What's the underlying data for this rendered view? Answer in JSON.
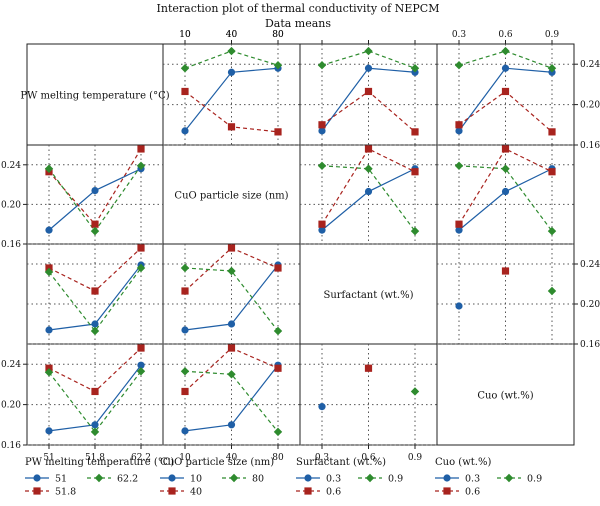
{
  "title": "Interaction plot of thermal conductivity of NEPCM",
  "subtitle": "Data means",
  "colors": {
    "blue": "#1f5fa6",
    "red": "#a8231e",
    "green": "#2e8b2e",
    "grid": "#555555"
  },
  "chart_data": {
    "type": "line",
    "factors": [
      {
        "key": "pw",
        "label": "PW melting temperature (°C)",
        "levels": [
          "51",
          "51.8",
          "62.2"
        ]
      },
      {
        "key": "cuo_size",
        "label": "CuO particle size (nm)",
        "levels": [
          "10",
          "40",
          "80"
        ]
      },
      {
        "key": "surf",
        "label": "Surfactant (wt.%)",
        "levels": [
          "0.3",
          "0.6",
          "0.9"
        ]
      },
      {
        "key": "cuo",
        "label": "Cuo (wt.%)",
        "levels": [
          "0.3",
          "0.6",
          "0.9"
        ]
      }
    ],
    "y_ticks": [
      "0.16",
      "0.20",
      "0.24"
    ],
    "ylim": [
      0.16,
      0.26
    ],
    "series_colors": [
      "blue",
      "red",
      "green"
    ],
    "series_markers": [
      "circle",
      "square",
      "diamond"
    ],
    "panels": [
      {
        "row": 0,
        "col": 1,
        "trace_factor": "pw",
        "series": [
          {
            "name": "51",
            "values": [
              0.174,
              0.232,
              0.236
            ]
          },
          {
            "name": "51.8",
            "values": [
              0.213,
              0.178,
              0.173
            ]
          },
          {
            "name": "62.2",
            "values": [
              0.236,
              0.253,
              0.239
            ]
          }
        ]
      },
      {
        "row": 0,
        "col": 2,
        "trace_factor": "pw",
        "series": [
          {
            "name": "51",
            "values": [
              0.174,
              0.236,
              0.232
            ]
          },
          {
            "name": "51.8",
            "values": [
              0.18,
              0.213,
              0.173
            ]
          },
          {
            "name": "62.2",
            "values": [
              0.239,
              0.253,
              0.236
            ]
          }
        ]
      },
      {
        "row": 0,
        "col": 3,
        "trace_factor": "pw",
        "series": [
          {
            "name": "51",
            "values": [
              0.174,
              0.236,
              0.232
            ]
          },
          {
            "name": "51.8",
            "values": [
              0.18,
              0.213,
              0.173
            ]
          },
          {
            "name": "62.2",
            "values": [
              0.239,
              0.253,
              0.236
            ]
          }
        ]
      },
      {
        "row": 1,
        "col": 0,
        "trace_factor": "cuo_size",
        "series": [
          {
            "name": "10",
            "values": [
              0.174,
              0.214,
              0.236
            ]
          },
          {
            "name": "40",
            "values": [
              0.233,
              0.18,
              0.256
            ]
          },
          {
            "name": "80",
            "values": [
              0.236,
              0.173,
              0.239
            ]
          }
        ]
      },
      {
        "row": 1,
        "col": 2,
        "trace_factor": "cuo_size",
        "series": [
          {
            "name": "10",
            "values": [
              0.174,
              0.213,
              0.236
            ]
          },
          {
            "name": "40",
            "values": [
              0.18,
              0.256,
              0.233
            ]
          },
          {
            "name": "80",
            "values": [
              0.239,
              0.236,
              0.173
            ]
          }
        ]
      },
      {
        "row": 1,
        "col": 3,
        "trace_factor": "cuo_size",
        "series": [
          {
            "name": "10",
            "values": [
              0.174,
              0.213,
              0.236
            ]
          },
          {
            "name": "40",
            "values": [
              0.18,
              0.256,
              0.233
            ]
          },
          {
            "name": "80",
            "values": [
              0.239,
              0.236,
              0.173
            ]
          }
        ]
      },
      {
        "row": 2,
        "col": 0,
        "trace_factor": "surf",
        "series": [
          {
            "name": "0.3",
            "values": [
              0.174,
              0.18,
              0.239
            ]
          },
          {
            "name": "0.6",
            "values": [
              0.236,
              0.213,
              0.256
            ]
          },
          {
            "name": "0.9",
            "values": [
              0.232,
              0.173,
              0.236
            ]
          }
        ]
      },
      {
        "row": 2,
        "col": 1,
        "trace_factor": "surf",
        "series": [
          {
            "name": "0.3",
            "values": [
              0.174,
              0.18,
              0.239
            ]
          },
          {
            "name": "0.6",
            "values": [
              0.213,
              0.256,
              0.236
            ]
          },
          {
            "name": "0.9",
            "values": [
              0.236,
              0.233,
              0.173
            ]
          }
        ]
      },
      {
        "row": 2,
        "col": 3,
        "trace_factor": "surf",
        "series": [
          {
            "name": "0.3",
            "values": [
              0.198,
              null,
              null
            ]
          },
          {
            "name": "0.6",
            "values": [
              null,
              0.233,
              null
            ]
          },
          {
            "name": "0.9",
            "values": [
              null,
              null,
              0.213
            ]
          }
        ]
      },
      {
        "row": 3,
        "col": 0,
        "trace_factor": "cuo",
        "series": [
          {
            "name": "0.3",
            "values": [
              0.174,
              0.18,
              0.239
            ]
          },
          {
            "name": "0.6",
            "values": [
              0.236,
              0.213,
              0.256
            ]
          },
          {
            "name": "0.9",
            "values": [
              0.232,
              0.173,
              0.233
            ]
          }
        ]
      },
      {
        "row": 3,
        "col": 1,
        "trace_factor": "cuo",
        "series": [
          {
            "name": "0.3",
            "values": [
              0.174,
              0.18,
              0.239
            ]
          },
          {
            "name": "0.6",
            "values": [
              0.213,
              0.256,
              0.236
            ]
          },
          {
            "name": "0.9",
            "values": [
              0.233,
              0.23,
              0.173
            ]
          }
        ]
      },
      {
        "row": 3,
        "col": 2,
        "trace_factor": "cuo",
        "series": [
          {
            "name": "0.3",
            "values": [
              0.198,
              null,
              null
            ]
          },
          {
            "name": "0.6",
            "values": [
              null,
              0.236,
              null
            ]
          },
          {
            "name": "0.9",
            "values": [
              null,
              null,
              0.213
            ]
          }
        ]
      }
    ],
    "legends": [
      {
        "title": "PW melting temperature (°C)",
        "entries": [
          "51",
          "62.2",
          "51.8"
        ]
      },
      {
        "title": "CuO particle size (nm)",
        "entries": [
          "10",
          "80",
          "40"
        ]
      },
      {
        "title": "Surfactant (wt.%)",
        "entries": [
          "0.3",
          "0.9",
          "0.6"
        ]
      },
      {
        "title": "Cuo (wt.%)",
        "entries": [
          "0.3",
          "0.9",
          "0.6"
        ]
      }
    ],
    "legend_entry_series": [
      [
        0,
        2,
        1
      ],
      [
        0,
        2,
        1
      ],
      [
        0,
        2,
        1
      ],
      [
        0,
        2,
        1
      ]
    ],
    "grid": true
  }
}
